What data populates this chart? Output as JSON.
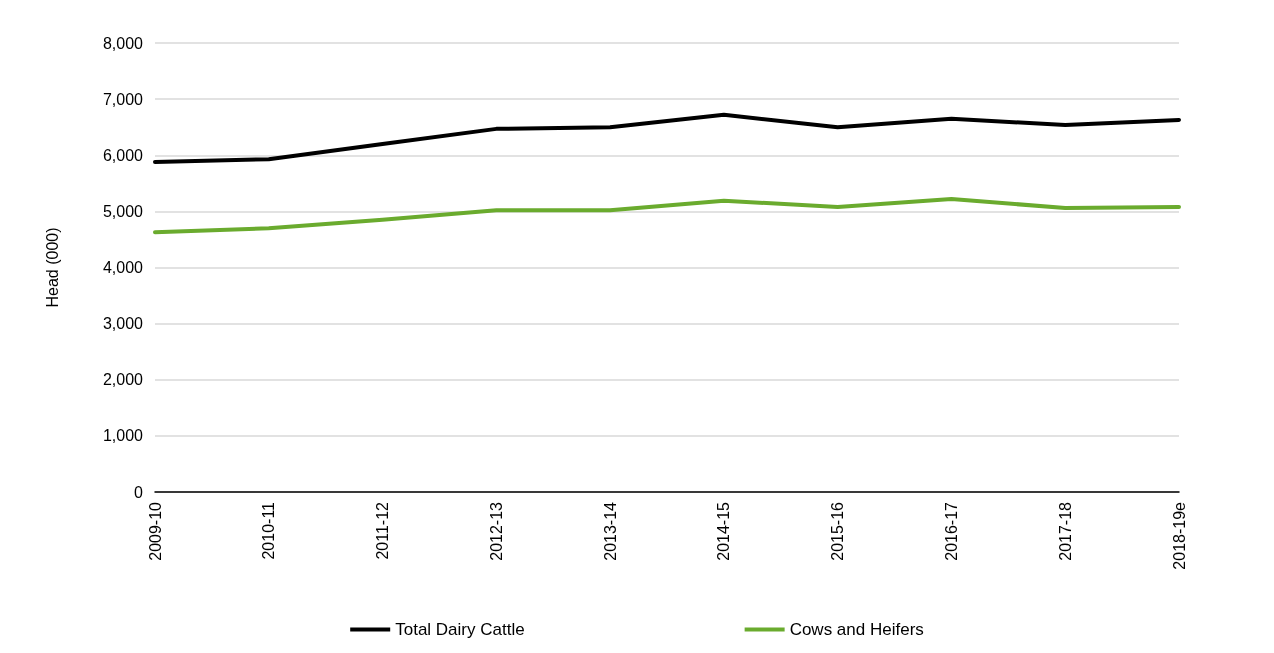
{
  "chart_data": {
    "type": "line",
    "ylabel": "Head (000)",
    "categories": [
      "2009-10",
      "2010-11",
      "2011-12",
      "2012-13",
      "2013-14",
      "2014-15",
      "2015-16",
      "2016-17",
      "2017-18",
      "2018-19e"
    ],
    "series": [
      {
        "name": "Total Dairy Cattle",
        "color": "#000000",
        "values": [
          5880,
          5930,
          6200,
          6470,
          6500,
          6720,
          6500,
          6650,
          6540,
          6630
        ]
      },
      {
        "name": "Cows and Heifers",
        "color": "#6aab2e",
        "values": [
          4630,
          4700,
          4850,
          5020,
          5020,
          5190,
          5080,
          5220,
          5060,
          5080
        ]
      }
    ],
    "ylim": [
      0,
      8000
    ],
    "yticks": [
      0,
      {
        "value": 1000,
        "label": "1,000"
      },
      {
        "value": 2000,
        "label": "2,000"
      },
      {
        "value": 3000,
        "label": "3,000"
      },
      {
        "value": 4000,
        "label": "4,000"
      },
      {
        "value": 5000,
        "label": "5,000"
      },
      {
        "value": 6000,
        "label": "6,000"
      },
      {
        "value": 7000,
        "label": "7,000"
      },
      {
        "value": 8000,
        "label": "8,000"
      }
    ],
    "grid": "y",
    "legend": "bottom",
    "marker": "none",
    "line_style": "solid"
  }
}
